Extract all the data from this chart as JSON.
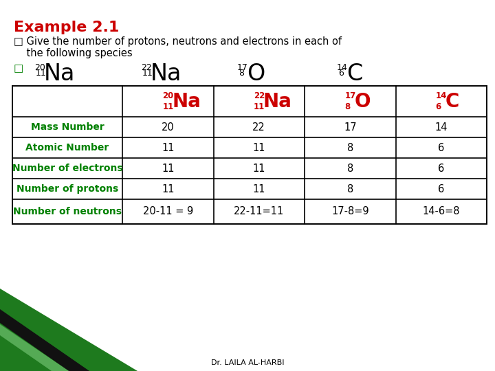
{
  "title": "Example 2.1",
  "title_color": "#cc0000",
  "bg_color": "#ffffff",
  "intro_line1": "□ Give the number of protons, neutrons and electrons in each of",
  "intro_line2": "    the following species",
  "species": [
    {
      "mass": "20",
      "atomic": "11",
      "symbol": "Na"
    },
    {
      "mass": "22",
      "atomic": "11",
      "symbol": "Na"
    },
    {
      "mass": "17",
      "atomic": "8",
      "symbol": "O"
    },
    {
      "mass": "14",
      "atomic": "6",
      "symbol": "C"
    }
  ],
  "row_labels": [
    "Mass Number",
    "Atomic Number",
    "Number of electrons",
    "Number of protons",
    "Number of neutrons"
  ],
  "row_label_color": "#008000",
  "table_data": [
    [
      "20",
      "22",
      "17",
      "14"
    ],
    [
      "11",
      "11",
      "8",
      "6"
    ],
    [
      "11",
      "11",
      "8",
      "6"
    ],
    [
      "11",
      "11",
      "8",
      "6"
    ],
    [
      "20-11 = 9",
      "22-11=11",
      "17-8=9",
      "14-6=8"
    ]
  ],
  "table_data_color": "#000000",
  "header_symbol_color": "#cc0000",
  "footer_text": "Dr. LAILA AL-HARBI",
  "footer_color": "#000000",
  "green_color1": "#1a7a1a",
  "green_color2": "#006600",
  "black_color": "#111111"
}
